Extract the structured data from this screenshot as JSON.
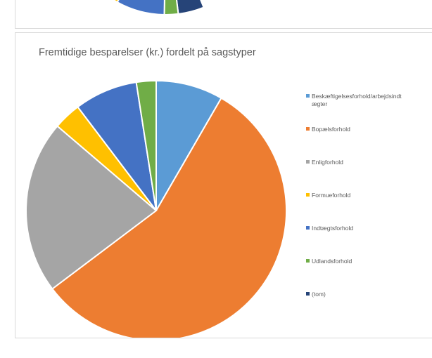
{
  "chart_data": {
    "type": "pie",
    "title": "Fremtidige besparelser (kr.) fordelt på sagstyper",
    "legend_position": "right",
    "categories": [
      "Beskæftigelsesforhold/arbejdsindtægter",
      "Bopælsforhold",
      "Enligforhold",
      "Formueforhold",
      "Indtægtsforhold",
      "Udlandsforhold",
      "(tom)"
    ],
    "legend_labels": [
      [
        "Beskæftigelsesforhold/arbejdsindt",
        "ægter"
      ],
      [
        "Bopælsforhold"
      ],
      [
        "Enligforhold"
      ],
      [
        "Formueforhold"
      ],
      [
        "Indtægtsforhold"
      ],
      [
        "Udlandsforhold"
      ],
      [
        "(tom)"
      ]
    ],
    "values": [
      8.5,
      57.5,
      22.0,
      3.5,
      8.0,
      2.5,
      0.0
    ],
    "colors": [
      "#5B9BD5",
      "#ED7D31",
      "#A5A5A5",
      "#FFC000",
      "#4472C4",
      "#70AD47",
      "#264478"
    ]
  },
  "previous_chart": {
    "colors": [
      "#264478",
      "#70AD47",
      "#4472C4",
      "#FFC000"
    ]
  }
}
